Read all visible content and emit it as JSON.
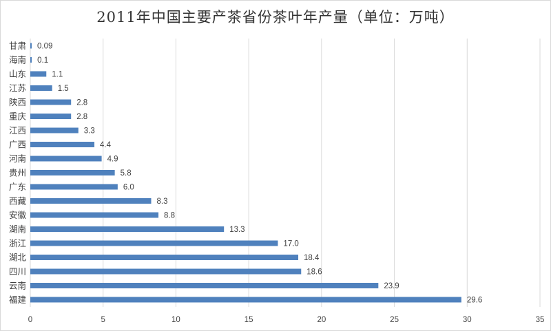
{
  "chart_data": {
    "type": "bar",
    "orientation": "horizontal",
    "title": "2011年中国主要产茶省份茶叶年产量（单位：万吨）",
    "categories": [
      "甘肃",
      "海南",
      "山东",
      "江苏",
      "陕西",
      "重庆",
      "江西",
      "广西",
      "河南",
      "贵州",
      "广东",
      "西藏",
      "安徽",
      "湖南",
      "浙江",
      "湖北",
      "四川",
      "云南",
      "福建"
    ],
    "values": [
      0.09,
      0.1,
      1.1,
      1.5,
      2.8,
      2.8,
      3.3,
      4.4,
      4.9,
      5.8,
      6.0,
      8.3,
      8.8,
      13.3,
      17.0,
      18.4,
      18.6,
      23.9,
      29.6
    ],
    "value_labels": [
      "0.09",
      "0.1",
      "1.1",
      "1.5",
      "2.8",
      "2.8",
      "3.3",
      "4.4",
      "4.9",
      "5.8",
      "6.0",
      "8.3",
      "8.8",
      "13.3",
      "17.0",
      "18.4",
      "18.6",
      "23.9",
      "29.6"
    ],
    "xlim": [
      0,
      35
    ],
    "xticks": [
      0,
      5,
      10,
      15,
      20,
      25,
      30,
      35
    ],
    "grid": "vertical",
    "legend": "none",
    "bar_color": "#4f81bd",
    "grid_color": "#d9d9d9"
  }
}
